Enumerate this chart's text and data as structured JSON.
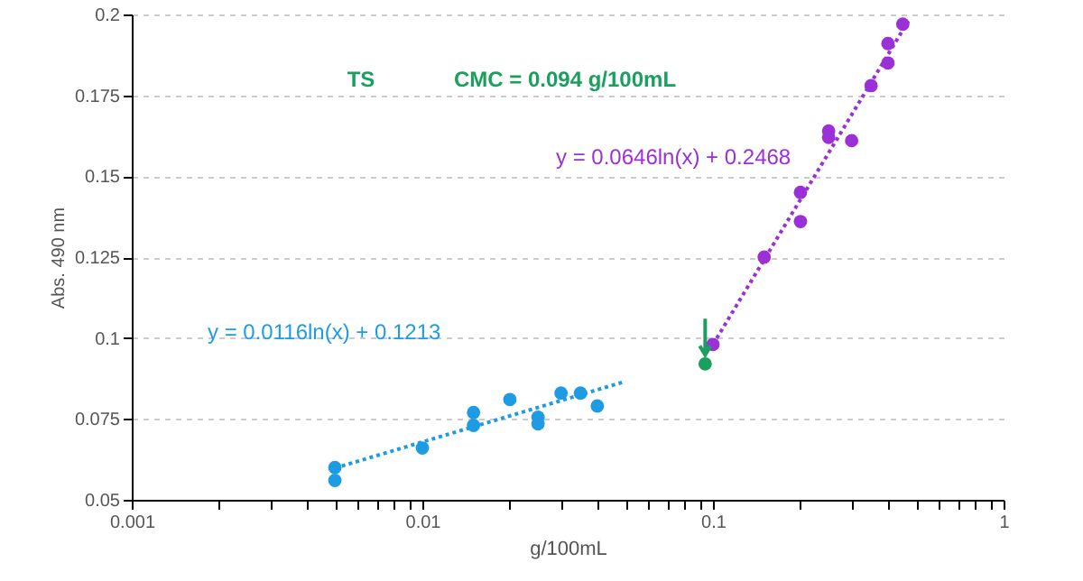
{
  "chart_data": {
    "type": "scatter",
    "xlabel": "g/100mL",
    "ylabel": "Abs. 490 nm",
    "log": "x",
    "grid": "y",
    "legend": false,
    "xlim": [
      0.001,
      1
    ],
    "ylim": [
      0.05,
      0.2
    ],
    "xticks": [
      0.001,
      {
        "value": 0.002,
        "label": null
      },
      {
        "value": 0.003,
        "label": null
      },
      {
        "value": 0.004,
        "label": null
      },
      {
        "value": 0.005,
        "label": null
      },
      {
        "value": 0.006,
        "label": null
      },
      {
        "value": 0.007,
        "label": null
      },
      {
        "value": 0.008,
        "label": null
      },
      {
        "value": 0.009,
        "label": null
      },
      0.01,
      {
        "value": 0.02,
        "label": null
      },
      {
        "value": 0.03,
        "label": null
      },
      {
        "value": 0.04,
        "label": null
      },
      {
        "value": 0.05,
        "label": null
      },
      {
        "value": 0.06,
        "label": null
      },
      {
        "value": 0.07,
        "label": null
      },
      {
        "value": 0.08,
        "label": null
      },
      {
        "value": 0.09,
        "label": null
      },
      0.1,
      {
        "value": 0.2,
        "label": null
      },
      {
        "value": 0.3,
        "label": null
      },
      {
        "value": 0.4,
        "label": null
      },
      {
        "value": 0.5,
        "label": null
      },
      {
        "value": 0.6,
        "label": null
      },
      {
        "value": 0.7,
        "label": null
      },
      {
        "value": 0.8,
        "label": null
      },
      {
        "value": 0.9,
        "label": null
      },
      1
    ],
    "yticks": [
      0.05,
      0.075,
      0.1,
      0.125,
      0.15,
      0.175,
      0.2
    ],
    "series": [
      {
        "type": "scatter",
        "marker": "circle",
        "color": "#1e9be3",
        "x": [
          0.005,
          0.005,
          0.01,
          0.015,
          0.015,
          0.02,
          0.025,
          0.025,
          0.03,
          0.035,
          0.04
        ],
        "values": [
          0.06,
          0.056,
          0.066,
          0.077,
          0.073,
          0.081,
          0.0755,
          0.0735,
          0.083,
          0.083,
          0.079
        ]
      },
      {
        "type": "scatter",
        "marker": "circle",
        "color": "#9b2fd8",
        "x": [
          0.1,
          0.15,
          0.2,
          0.2,
          0.25,
          0.25,
          0.3,
          0.35,
          0.4,
          0.4,
          0.45
        ],
        "values": [
          0.098,
          0.125,
          0.136,
          0.145,
          0.164,
          0.162,
          0.161,
          0.178,
          0.185,
          0.191,
          0.197
        ]
      },
      {
        "type": "scatter",
        "marker": "circle",
        "color": "#1aa05e",
        "x": [
          0.094
        ],
        "values": [
          0.092
        ]
      },
      {
        "type": "line",
        "line_style": "dotted",
        "color": "#1e9be3",
        "x": [
          0.005,
          0.05
        ],
        "values": [
          0.0598,
          0.0866
        ]
      },
      {
        "type": "line",
        "line_style": "dotted",
        "color": "#9b2fd8",
        "x": [
          0.1,
          0.47
        ],
        "values": [
          0.098,
          0.198
        ]
      }
    ],
    "annotations": [
      "y = 0.0116ln(x) + 0.1213",
      "y = 0.0646ln(x) + 0.2468",
      "TS",
      "CMC = 0.094 g/100mL"
    ]
  }
}
